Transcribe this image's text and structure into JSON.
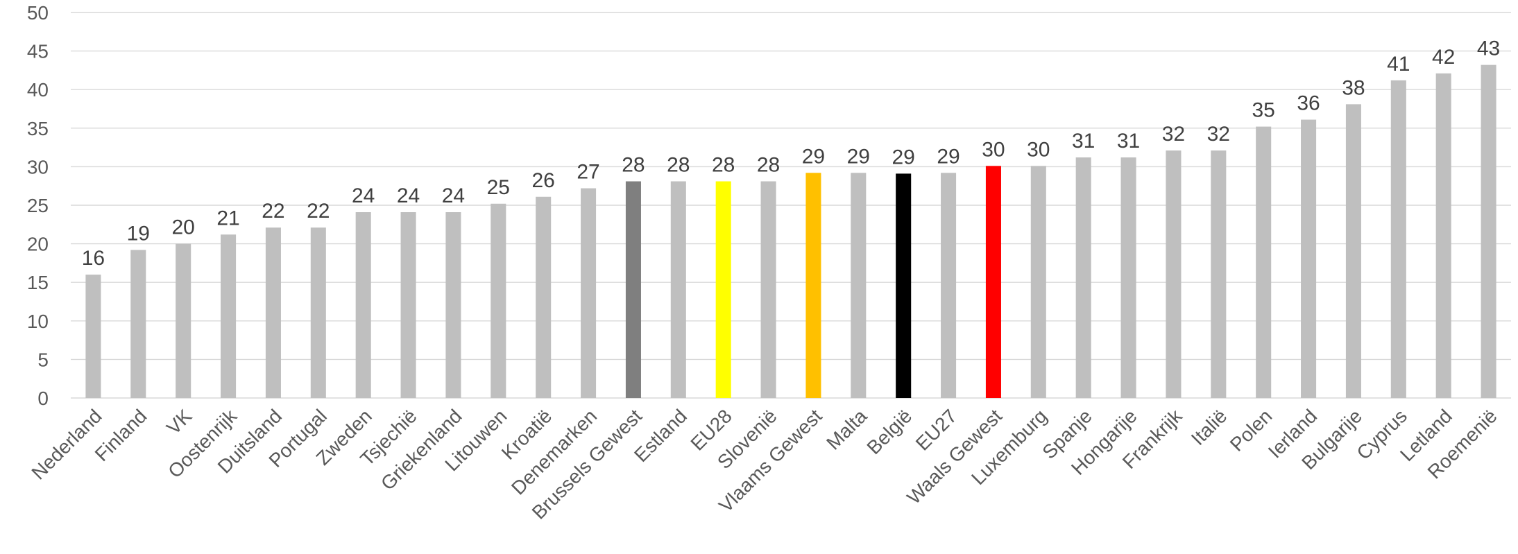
{
  "chart_data": {
    "type": "bar",
    "title": "",
    "xlabel": "",
    "ylabel": "",
    "ylim": [
      0,
      50
    ],
    "yticks": [
      0,
      5,
      10,
      15,
      20,
      25,
      30,
      35,
      40,
      45,
      50
    ],
    "grid": true,
    "legend": "none",
    "categories": [
      "Nederland",
      "Finland",
      "VK",
      "Oostenrijk",
      "Duitsland",
      "Portugal",
      "Zweden",
      "Tsjechië",
      "Griekenland",
      "Litouwen",
      "Kroatië",
      "Denemarken",
      "Brussels Gewest",
      "Estland",
      "EU28",
      "Slovenië",
      "Vlaams Gewest",
      "Malta",
      "België",
      "EU27",
      "Waals Gewest",
      "Luxemburg",
      "Spanje",
      "Hongarije",
      "Frankrijk",
      "Italië",
      "Polen",
      "Ierland",
      "Bulgarije",
      "Cyprus",
      "Letland",
      "Roemenië"
    ],
    "values": [
      16,
      19,
      20,
      21,
      22,
      22,
      24,
      24,
      24,
      25,
      26,
      27,
      28,
      28,
      28,
      28,
      29,
      29,
      29,
      29,
      30,
      30,
      31,
      31,
      32,
      32,
      35,
      36,
      38,
      41,
      42,
      43
    ],
    "plotted_values": [
      16,
      19.2,
      20,
      21.2,
      22.1,
      22.1,
      24.1,
      24.1,
      24.1,
      25.2,
      26.1,
      27.2,
      28.1,
      28.1,
      28.1,
      28.1,
      29.2,
      29.2,
      29.1,
      29.2,
      30.1,
      30.1,
      31.2,
      31.2,
      32.1,
      32.1,
      35.2,
      36.1,
      38.1,
      41.2,
      42.1,
      43.2
    ],
    "colors": {
      "default": "#bfbfbf",
      "Brussels Gewest": "#7f7f7f",
      "EU28": "#ffff00",
      "Vlaams Gewest": "#ffc000",
      "België": "#000000",
      "Waals Gewest": "#ff0000"
    }
  }
}
